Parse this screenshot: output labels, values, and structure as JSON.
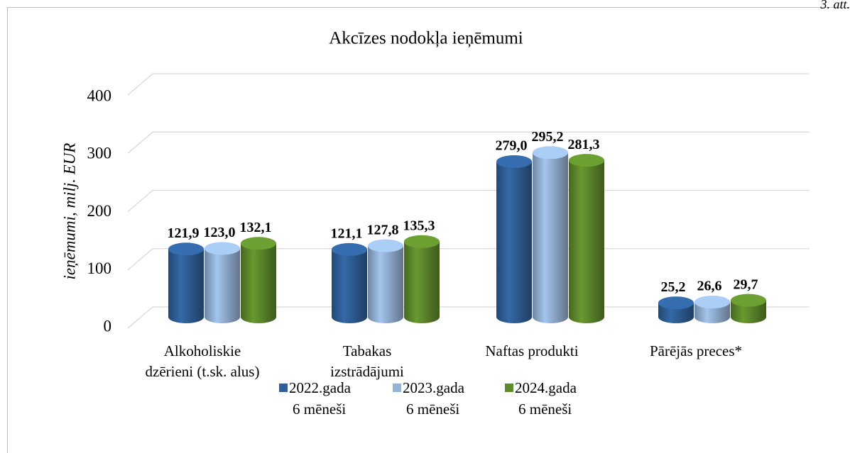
{
  "chart_data": {
    "type": "bar3d",
    "title": "Akcīzes nodokļa ieņēmumi",
    "corner_note": "3. att.",
    "ylabel": "ieņēmumi, milj. EUR",
    "categories": [
      [
        "Alkoholiskie",
        "dzērieni (t.sk. alus)"
      ],
      [
        "Tabakas",
        "izstrādājumi"
      ],
      [
        "Naftas produkti"
      ],
      [
        "Pārējās preces*"
      ]
    ],
    "series": [
      {
        "name": [
          "2022.gada",
          "6 mēneši"
        ],
        "color": "#2f5f98",
        "label_color": "#1f3f6e",
        "values": [
          121.9,
          121.1,
          279.0,
          25.2
        ],
        "value_labels": [
          "121,9",
          "121,1",
          "279,0",
          "25,2"
        ]
      },
      {
        "name": [
          "2023.gada",
          "6 mēneši"
        ],
        "color": "#95b3d7",
        "label_color": "#3a6aa6",
        "values": [
          123.0,
          127.8,
          295.2,
          26.6
        ],
        "value_labels": [
          "123,0",
          "127,8",
          "295,2",
          "26,6"
        ]
      },
      {
        "name": [
          "2024.gada",
          "6 mēneši"
        ],
        "color": "#5f8b2c",
        "label_color": "#77a132",
        "values": [
          132.1,
          135.3,
          281.3,
          29.7
        ],
        "value_labels": [
          "132,1",
          "135,3",
          "281,3",
          "29,7"
        ]
      }
    ],
    "ylim": [
      0,
      400
    ],
    "yticks": [
      0,
      100,
      200,
      300,
      400
    ],
    "grid": true,
    "legend": "bottom"
  }
}
